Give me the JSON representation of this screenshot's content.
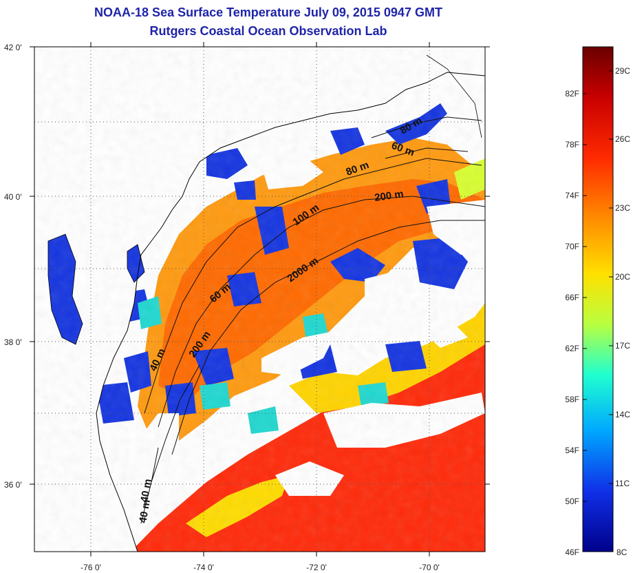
{
  "title": "NOAA-18 Sea Surface Temperature July 09, 2015 0947 GMT",
  "subtitle": "Rutgers Coastal Ocean Observation Lab",
  "map": {
    "lat_labels": [
      "42 0'",
      "40 0'",
      "38 0'",
      "36 0'"
    ],
    "lon_labels": [
      "-76 0'",
      "-74 0'",
      "-72 0'",
      "-70 0'"
    ],
    "contour_labels": [
      "80 m",
      "60 m",
      "80 m",
      "200 m",
      "100 m",
      "2000 m",
      "60 m",
      "40 m",
      "200 m",
      "40 m",
      "40 m"
    ],
    "grid": "dotted",
    "cloud_color": "#ffffff"
  },
  "colorbar": {
    "fahrenheit_labels": [
      "82F",
      "78F",
      "74F",
      "70F",
      "66F",
      "62F",
      "58F",
      "54F",
      "50F",
      "46F"
    ],
    "celsius_labels": [
      "29C",
      "26C",
      "23C",
      "20C",
      "17C",
      "14C",
      "11C",
      "8C"
    ],
    "colors": [
      "#7b0000",
      "#d40000",
      "#ff3a00",
      "#ff9c00",
      "#ffe800",
      "#a8ff5a",
      "#00e8ff",
      "#1c8cff",
      "#0a1fdc",
      "#000088"
    ]
  }
}
